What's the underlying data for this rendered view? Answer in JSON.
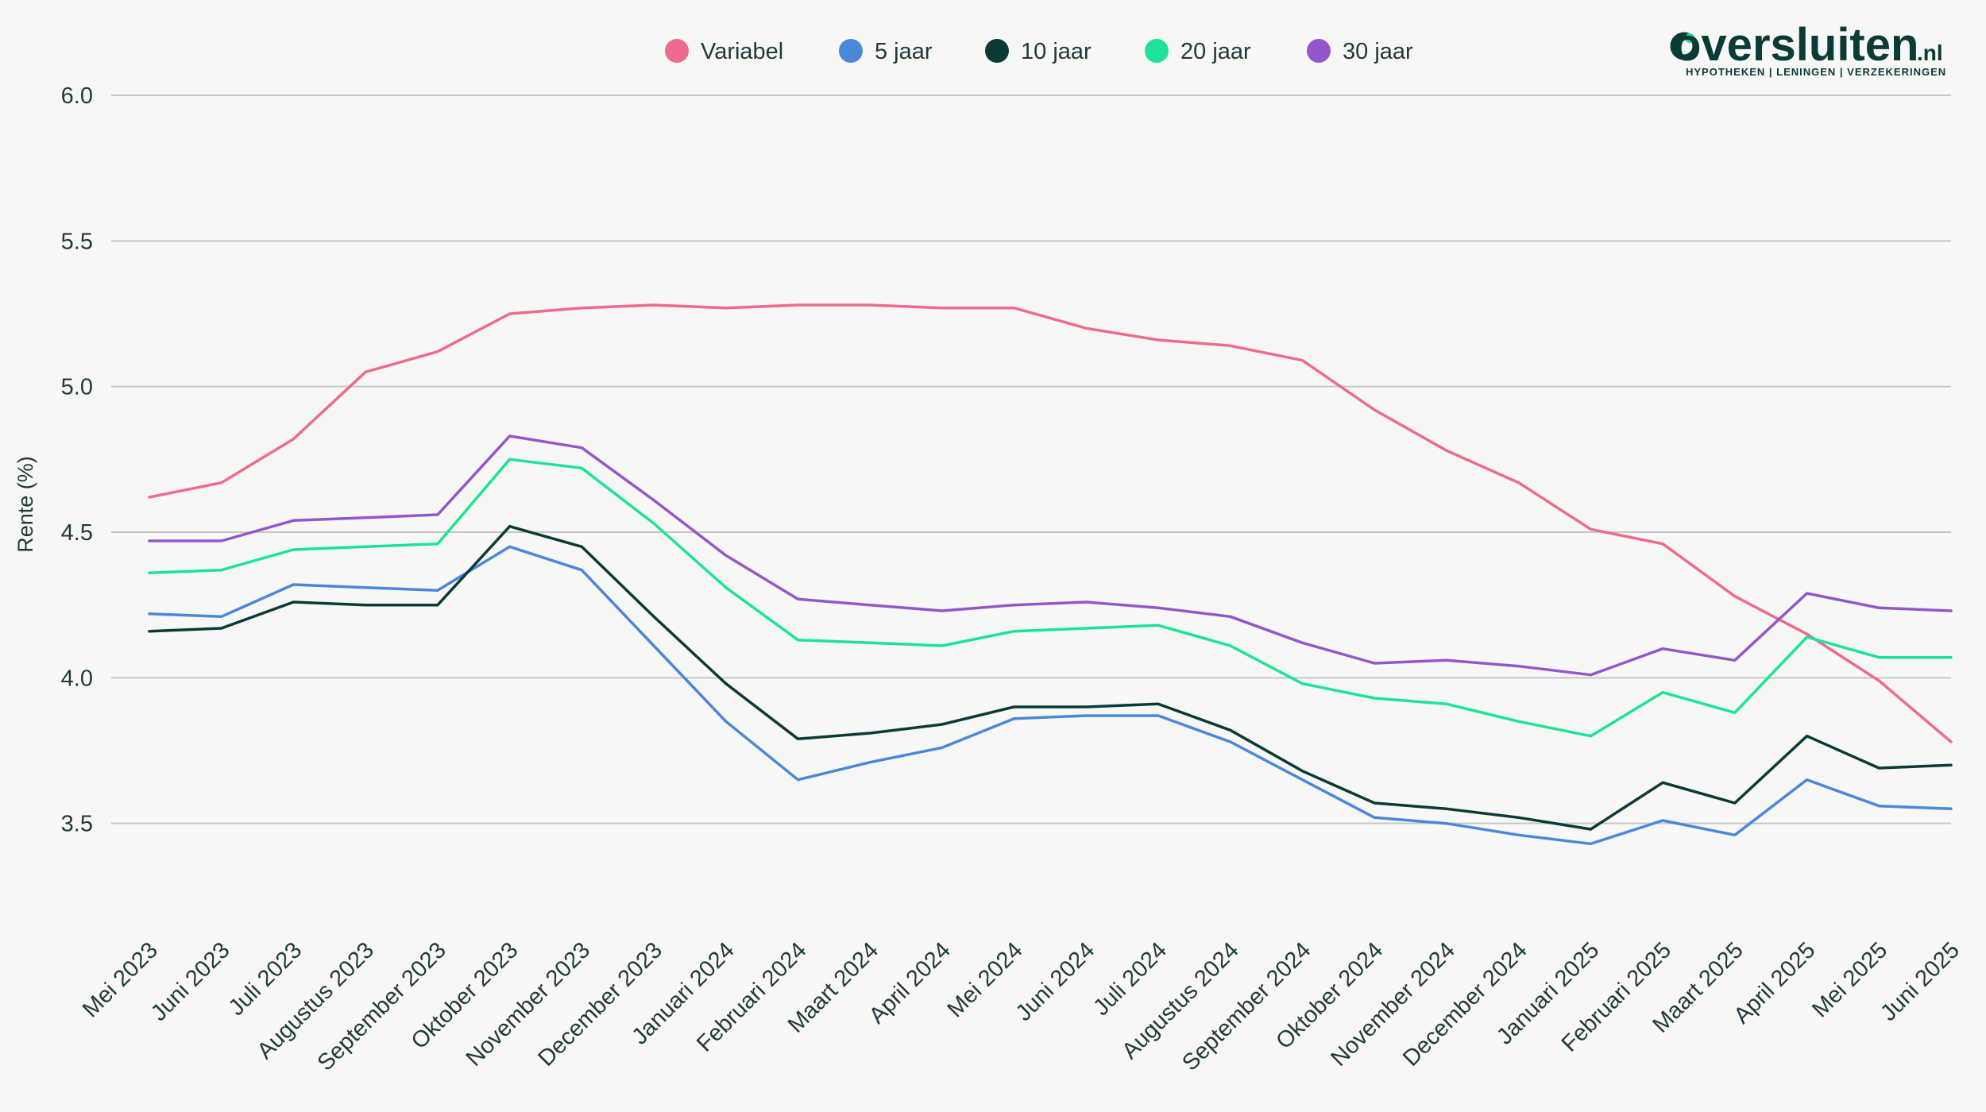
{
  "logo": {
    "text": "oversluiten",
    "suffix": ".nl",
    "tagline": "HYPOTHEKEN | LENINGEN | VERZEKERINGEN",
    "accent_color": "#1de39a"
  },
  "chart_data": {
    "type": "line",
    "ylabel": "Rente (%)",
    "xlabel": "",
    "ylim": [
      3.3,
      6.0
    ],
    "yticks": [
      "3.5",
      "4.0",
      "4.5",
      "5.0",
      "5.5",
      "6.0"
    ],
    "grid": true,
    "legend_position": "top-center",
    "categories": [
      "Mei 2023",
      "Juni 2023",
      "Juli 2023",
      "Augustus 2023",
      "September 2023",
      "Oktober 2023",
      "November 2023",
      "December 2023",
      "Januari 2024",
      "Februari 2024",
      "Maart 2024",
      "April 2024",
      "Mei 2024",
      "Juni 2024",
      "Juli 2024",
      "Augustus 2024",
      "September 2024",
      "Oktober 2024",
      "November 2024",
      "December 2024",
      "Januari 2025",
      "Februari 2025",
      "Maart 2025",
      "April 2025",
      "Mei 2025",
      "Juni 2025"
    ],
    "series": [
      {
        "name": "Variabel",
        "color": "#ef6b8d",
        "values": [
          4.62,
          4.67,
          4.82,
          5.05,
          5.12,
          5.25,
          5.27,
          5.28,
          5.27,
          5.28,
          5.28,
          5.27,
          5.27,
          5.2,
          5.16,
          5.14,
          5.09,
          4.92,
          4.78,
          4.67,
          4.51,
          4.46,
          4.28,
          4.15,
          3.99,
          3.78
        ]
      },
      {
        "name": "5 jaar",
        "color": "#4a88da",
        "values": [
          4.22,
          4.21,
          4.32,
          4.31,
          4.3,
          4.45,
          4.37,
          4.11,
          3.85,
          3.65,
          3.71,
          3.76,
          3.86,
          3.87,
          3.87,
          3.78,
          3.65,
          3.52,
          3.5,
          3.46,
          3.43,
          3.51,
          3.46,
          3.65,
          3.56,
          3.55
        ]
      },
      {
        "name": "10 jaar",
        "color": "#0b3b36",
        "values": [
          4.16,
          4.17,
          4.26,
          4.25,
          4.25,
          4.52,
          4.45,
          4.21,
          3.98,
          3.79,
          3.81,
          3.84,
          3.9,
          3.9,
          3.91,
          3.82,
          3.68,
          3.57,
          3.55,
          3.52,
          3.48,
          3.64,
          3.57,
          3.8,
          3.69,
          3.7
        ]
      },
      {
        "name": "20 jaar",
        "color": "#1de39a",
        "values": [
          4.36,
          4.37,
          4.44,
          4.45,
          4.46,
          4.75,
          4.72,
          4.53,
          4.31,
          4.13,
          4.12,
          4.11,
          4.16,
          4.17,
          4.18,
          4.11,
          3.98,
          3.93,
          3.91,
          3.85,
          3.8,
          3.95,
          3.88,
          4.14,
          4.07,
          4.07
        ]
      },
      {
        "name": "30 jaar",
        "color": "#9556cc",
        "values": [
          4.47,
          4.47,
          4.54,
          4.55,
          4.56,
          4.83,
          4.79,
          4.61,
          4.42,
          4.27,
          4.25,
          4.23,
          4.25,
          4.26,
          4.24,
          4.21,
          4.12,
          4.05,
          4.06,
          4.04,
          4.01,
          4.1,
          4.06,
          4.29,
          4.24,
          4.23
        ]
      }
    ]
  }
}
